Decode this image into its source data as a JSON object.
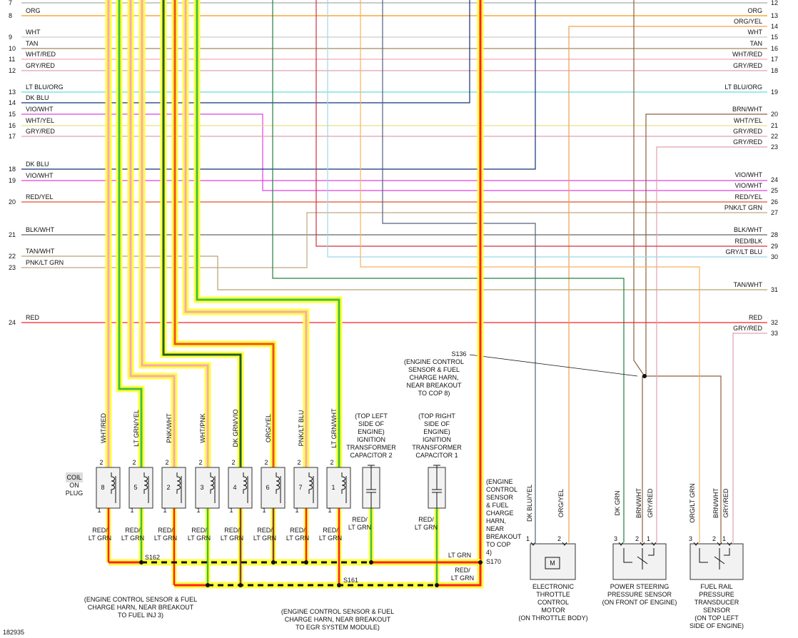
{
  "left_wires": [
    {
      "pin": "7",
      "label": "GRY/BLK"
    },
    {
      "pin": "8",
      "label": "ORG"
    },
    {
      "pin": "9",
      "label": "WHT"
    },
    {
      "pin": "10",
      "label": "TAN"
    },
    {
      "pin": "11",
      "label": "WHT/RED"
    },
    {
      "pin": "12",
      "label": "GRY/RED"
    },
    {
      "pin": "13",
      "label": "LT BLU/ORG"
    },
    {
      "pin": "14",
      "label": "DK BLU"
    },
    {
      "pin": "15",
      "label": "VIO/WHT"
    },
    {
      "pin": "16",
      "label": "WHT/YEL"
    },
    {
      "pin": "17",
      "label": "GRY/RED"
    },
    {
      "pin": "18",
      "label": "DK BLU"
    },
    {
      "pin": "19",
      "label": "VIO/WHT"
    },
    {
      "pin": "20",
      "label": "RED/YEL"
    },
    {
      "pin": "21",
      "label": "BLK/WHT"
    },
    {
      "pin": "22",
      "label": "TAN/WHT"
    },
    {
      "pin": "23",
      "label": "PNK/LT GRN"
    },
    {
      "pin": "24",
      "label": "RED"
    }
  ],
  "right_wires": [
    {
      "pin": "12",
      "label": "GRY/BLK"
    },
    {
      "pin": "13",
      "label": "ORG"
    },
    {
      "pin": "14",
      "label": "ORG/YEL"
    },
    {
      "pin": "15",
      "label": "WHT"
    },
    {
      "pin": "16",
      "label": "TAN"
    },
    {
      "pin": "17",
      "label": "WHT/RED"
    },
    {
      "pin": "18",
      "label": "GRY/RED"
    },
    {
      "pin": "19",
      "label": "LT BLU/ORG"
    },
    {
      "pin": "20",
      "label": "BRN/WHT"
    },
    {
      "pin": "21",
      "label": "WHT/YEL"
    },
    {
      "pin": "22",
      "label": "GRY/RED"
    },
    {
      "pin": "23",
      "label": "GRY/RED"
    },
    {
      "pin": "24",
      "label": "VIO/WHT"
    },
    {
      "pin": "25",
      "label": "VIO/WHT"
    },
    {
      "pin": "26",
      "label": "RED/YEL"
    },
    {
      "pin": "27",
      "label": "PNK/LT GRN"
    },
    {
      "pin": "28",
      "label": "BLK/WHT"
    },
    {
      "pin": "29",
      "label": "RED/BLK"
    },
    {
      "pin": "30",
      "label": "GRY/LT BLU"
    },
    {
      "pin": "31",
      "label": "TAN/WHT"
    },
    {
      "pin": "32",
      "label": "RED"
    },
    {
      "pin": "33",
      "label": "GRY/RED"
    }
  ],
  "coil_on_plug": [
    "COIL",
    "ON",
    "PLUG"
  ],
  "coils": [
    {
      "wire": "WHT/RED",
      "number": "8",
      "pin_top": "2",
      "pin_bottom": "1",
      "ground_wire": [
        "RED/",
        "LT GRN"
      ]
    },
    {
      "wire": "LT GRN/YEL",
      "number": "5",
      "pin_top": "2",
      "pin_bottom": "1",
      "ground_wire": [
        "RED/",
        "LT GRN"
      ]
    },
    {
      "wire": "PNK/WHT",
      "number": "2",
      "pin_top": "2",
      "pin_bottom": "1",
      "ground_wire": [
        "RED/",
        "LT GRN"
      ]
    },
    {
      "wire": "WHT/PNK",
      "number": "3",
      "pin_top": "2",
      "pin_bottom": "1",
      "ground_wire": [
        "RED/",
        "LT GRN"
      ]
    },
    {
      "wire": "DK GRN/VIO",
      "number": "4",
      "pin_top": "2",
      "pin_bottom": "1",
      "ground_wire": [
        "RED/",
        "LT GRN"
      ]
    },
    {
      "wire": "ORG/YEL",
      "number": "6",
      "pin_top": "2",
      "pin_bottom": "1",
      "ground_wire": [
        "RED/",
        "LT GRN"
      ]
    },
    {
      "wire": "PNK/LT BLU",
      "number": "7",
      "pin_top": "2",
      "pin_bottom": "1",
      "ground_wire": [
        "RED/",
        "LT GRN"
      ]
    },
    {
      "wire": "LT GRN/WHT",
      "number": "1",
      "pin_top": "2",
      "pin_bottom": "1",
      "ground_wire": [
        "RED/",
        "LT GRN"
      ]
    }
  ],
  "capacitors": [
    {
      "note": [
        "(TOP LEFT",
        "SIDE OF",
        "ENGINE)",
        "IGNITION",
        "TRANSFORMER",
        "CAPACITOR 2"
      ],
      "ground_wire": [
        "RED/",
        "LT GRN"
      ]
    },
    {
      "note": [
        "(TOP RIGHT",
        "SIDE OF",
        "ENGINE)",
        "IGNITION",
        "TRANSFORMER",
        "CAPACITOR 1"
      ],
      "ground_wire": [
        "RED/",
        "LT GRN"
      ]
    }
  ],
  "splices": [
    {
      "name": "S136",
      "note": [
        "(ENGINE CONTROL",
        "SENSOR & FUEL",
        "CHARGE HARN,",
        "NEAR BREAKOUT",
        "TO COP 8)"
      ]
    },
    {
      "name": "S162",
      "note": [
        "(ENGINE CONTROL SENSOR & FUEL",
        "CHARGE HARN, NEAR BREAKOUT",
        "TO FUEL INJ 3)"
      ]
    },
    {
      "name": "S161",
      "note": [
        "(ENGINE CONTROL SENSOR & FUEL",
        "CHARGE HARN, NEAR BREAKOUT",
        "TO EGR SYSTEM MODULE)"
      ]
    },
    {
      "name": "S170",
      "note": [
        "(ENGINE",
        "CONTROL",
        "SENSOR",
        "& FUEL",
        "CHARGE",
        "HARN,",
        "NEAR",
        "BREAKOUT",
        "TO COP",
        "4)"
      ],
      "wire_labels": [
        [
          "LT GRN"
        ],
        [
          "RED/",
          "LT GRN"
        ]
      ]
    }
  ],
  "components": [
    {
      "name": [
        "ELECTRONIC",
        "THROTTLE",
        "CONTROL",
        "MOTOR",
        "(ON THROTTLE BODY)"
      ],
      "pins": [
        {
          "number": "1",
          "wire": "DK BLU/YEL"
        },
        {
          "number": "2",
          "wire": "ORG/YEL"
        }
      ]
    },
    {
      "name": [
        "POWER STEERING",
        "PRESSURE SENSOR",
        "(ON FRONT OF ENGINE)"
      ],
      "pins": [
        {
          "number": "3",
          "wire": "DK GRN"
        },
        {
          "number": "2",
          "wire": "BRN/WHT"
        },
        {
          "number": "1",
          "wire": "GRY/RED"
        }
      ]
    },
    {
      "name": [
        "FUEL RAIL",
        "PRESSURE",
        "TRANSDUCER",
        "SENSOR",
        "(ON TOP LEFT",
        "SIDE OF ENGINE)"
      ],
      "pins": [
        {
          "number": "3",
          "wire": "ORG/LT GRN"
        },
        {
          "number": "2",
          "wire": "BRN/WHT"
        },
        {
          "number": "1",
          "wire": "GRY/RED"
        }
      ]
    }
  ],
  "motor_symbol": "M",
  "footer": "182935"
}
